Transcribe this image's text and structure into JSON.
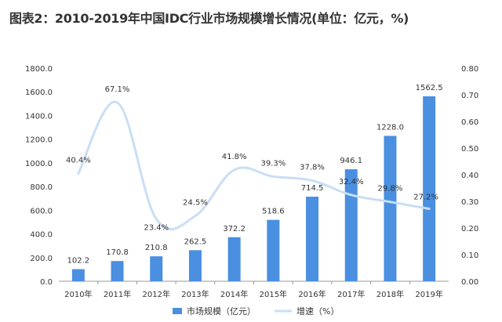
{
  "chart_data": {
    "type": "bar",
    "title": "图表2：2010-2019年中国IDC行业市场规模增长情况(单位：亿元，%)",
    "categories": [
      "2010年",
      "2011年",
      "2012年",
      "2013年",
      "2014年",
      "2015年",
      "2016年",
      "2017年",
      "2018年",
      "2019年"
    ],
    "series": [
      {
        "name": "市场规模（亿元）",
        "type": "bar",
        "axis": "left",
        "color": "#4a8fe0",
        "values": [
          102.2,
          170.8,
          210.8,
          262.5,
          372.2,
          518.6,
          714.5,
          946.1,
          1228.0,
          1562.5
        ],
        "labels": [
          "102.2",
          "170.8",
          "210.8",
          "262.5",
          "372.2",
          "518.6",
          "714.5",
          "946.1",
          "1228.0",
          "1562.5"
        ]
      },
      {
        "name": "增速（%）",
        "type": "line",
        "axis": "right",
        "color": "#c9def5",
        "values": [
          0.404,
          0.671,
          0.234,
          0.245,
          0.418,
          0.393,
          0.378,
          0.324,
          0.298,
          0.272
        ],
        "labels": [
          "40.4%",
          "67.1%",
          "23.4%",
          "24.5%",
          "41.8%",
          "39.3%",
          "37.8%",
          "32.4%",
          "29.8%",
          "27.2%"
        ]
      }
    ],
    "ylim_left": [
      0,
      1800
    ],
    "ylim_right": [
      0,
      0.8
    ],
    "yticks_left": [
      "0.0",
      "200.0",
      "400.0",
      "600.0",
      "800.0",
      "1000.0",
      "1200.0",
      "1400.0",
      "1600.0",
      "1800.0"
    ],
    "yticks_right": [
      "0.00",
      "0.10",
      "0.20",
      "0.30",
      "0.40",
      "0.50",
      "0.60",
      "0.70",
      "0.80"
    ],
    "legend_position": "bottom",
    "grid": false
  }
}
